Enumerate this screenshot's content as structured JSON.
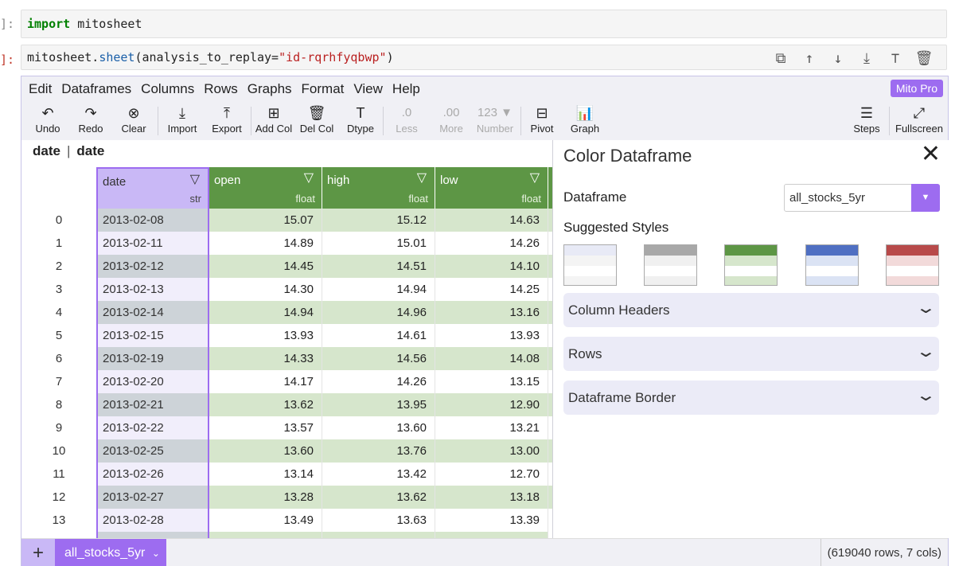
{
  "notebook": {
    "cell1": {
      "prompt": "]:",
      "keyword": "import",
      "module": " mitosheet"
    },
    "cell2": {
      "prompt": "]:",
      "obj": "mitosheet.",
      "fn": "sheet",
      "open": "(analysis_to_replay=",
      "arg": "\"id-rqrhfyqbwp\"",
      "close": ")"
    },
    "tools": [
      "copy-icon",
      "move-up-icon",
      "move-down-icon",
      "insert-below-icon",
      "insert-above-icon",
      "delete-icon"
    ]
  },
  "menu": {
    "items": [
      "Edit",
      "Dataframes",
      "Columns",
      "Rows",
      "Graphs",
      "Format",
      "View",
      "Help"
    ],
    "pro_label": "Mito Pro"
  },
  "toolbar": {
    "undo": "Undo",
    "redo": "Redo",
    "clear": "Clear",
    "import": "Import",
    "export": "Export",
    "add_col": "Add Col",
    "del_col": "Del Col",
    "dtype": "Dtype",
    "less": "Less",
    "less_icon": ".0",
    "more": "More",
    "more_icon": ".00",
    "number": "Number",
    "number_icon": "123 ▼",
    "pivot": "Pivot",
    "graph": "Graph",
    "steps": "Steps",
    "fullscreen": "Fullscreen"
  },
  "formula_bar": {
    "selected": "date",
    "value": "date"
  },
  "columns": [
    {
      "name": "date",
      "type": "str"
    },
    {
      "name": "open",
      "type": "float"
    },
    {
      "name": "high",
      "type": "float"
    },
    {
      "name": "low",
      "type": "float"
    }
  ],
  "rows": [
    {
      "idx": "0",
      "date": "2013-02-08",
      "open": "15.07",
      "high": "15.12",
      "low": "14.63"
    },
    {
      "idx": "1",
      "date": "2013-02-11",
      "open": "14.89",
      "high": "15.01",
      "low": "14.26"
    },
    {
      "idx": "2",
      "date": "2013-02-12",
      "open": "14.45",
      "high": "14.51",
      "low": "14.10"
    },
    {
      "idx": "3",
      "date": "2013-02-13",
      "open": "14.30",
      "high": "14.94",
      "low": "14.25"
    },
    {
      "idx": "4",
      "date": "2013-02-14",
      "open": "14.94",
      "high": "14.96",
      "low": "13.16"
    },
    {
      "idx": "5",
      "date": "2013-02-15",
      "open": "13.93",
      "high": "14.61",
      "low": "13.93"
    },
    {
      "idx": "6",
      "date": "2013-02-19",
      "open": "14.33",
      "high": "14.56",
      "low": "14.08"
    },
    {
      "idx": "7",
      "date": "2013-02-20",
      "open": "14.17",
      "high": "14.26",
      "low": "13.15"
    },
    {
      "idx": "8",
      "date": "2013-02-21",
      "open": "13.62",
      "high": "13.95",
      "low": "12.90"
    },
    {
      "idx": "9",
      "date": "2013-02-22",
      "open": "13.57",
      "high": "13.60",
      "low": "13.21"
    },
    {
      "idx": "10",
      "date": "2013-02-25",
      "open": "13.60",
      "high": "13.76",
      "low": "13.00"
    },
    {
      "idx": "11",
      "date": "2013-02-26",
      "open": "13.14",
      "high": "13.42",
      "low": "12.70"
    },
    {
      "idx": "12",
      "date": "2013-02-27",
      "open": "13.28",
      "high": "13.62",
      "low": "13.18"
    },
    {
      "idx": "13",
      "date": "2013-02-28",
      "open": "13.49",
      "high": "13.63",
      "low": "13.39"
    }
  ],
  "taskpane": {
    "title": "Color Dataframe",
    "dataframe_label": "Dataframe",
    "dataframe_value": "all_stocks_5yr",
    "suggested_label": "Suggested Styles",
    "styles": [
      {
        "header": "#e8eaf6",
        "band": "#f4f4f4"
      },
      {
        "header": "#a8a8a8",
        "band": "#f0f0f0"
      },
      {
        "header": "#5d9645",
        "band": "#d6e6cc"
      },
      {
        "header": "#4f6fc2",
        "band": "#dbe3f4"
      },
      {
        "header": "#b84a4a",
        "band": "#f2dada"
      }
    ],
    "sections": [
      "Column Headers",
      "Rows",
      "Dataframe Border"
    ]
  },
  "footer": {
    "add": "+",
    "sheet_tab": "all_stocks_5yr",
    "status": "(619040 rows, 7 cols)"
  },
  "colors": {
    "accent": "#9d6cf0",
    "header_green": "#5d9645",
    "band_green": "#d6e6cc"
  }
}
